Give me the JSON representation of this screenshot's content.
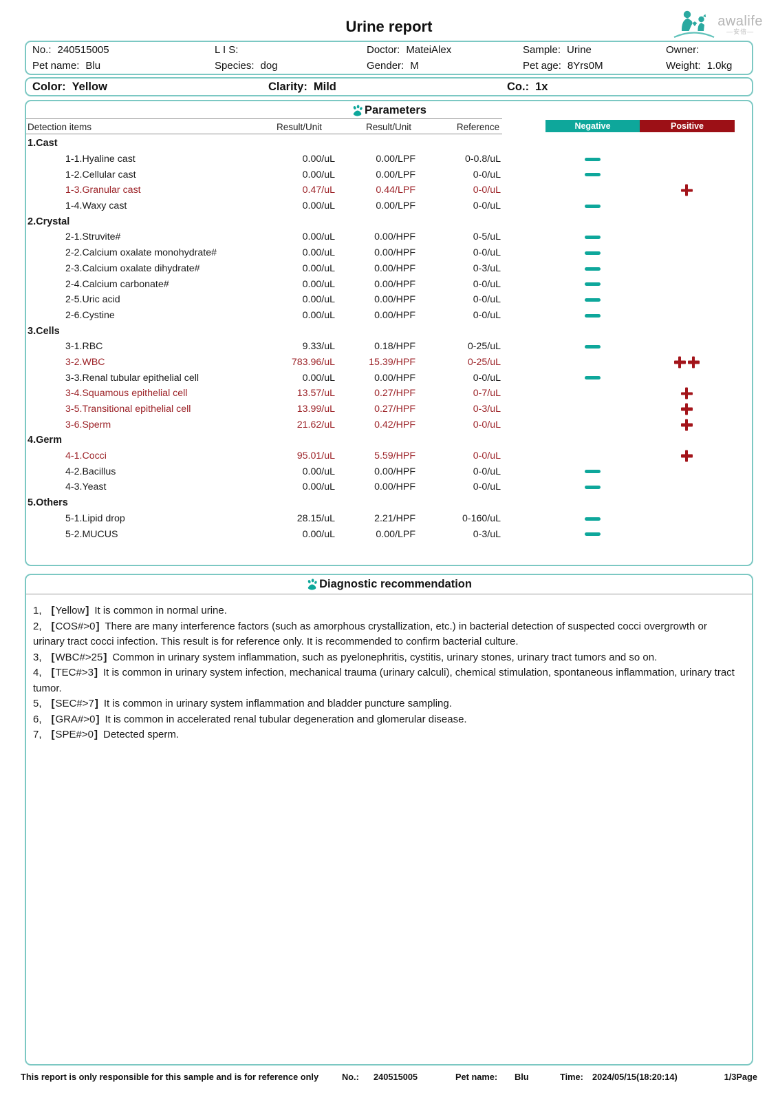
{
  "colors": {
    "accent_teal": "#0ea79b",
    "border_teal": "#7cc8c3",
    "positive_red": "#9c1016",
    "abnormal_text": "#9c2227"
  },
  "header": {
    "title": "Urine report",
    "logo": {
      "brand": "awalife",
      "subtitle": "—安倍—"
    }
  },
  "info": {
    "rows": [
      [
        {
          "label": "No.:",
          "value": "240515005"
        },
        {
          "label": "L I S:",
          "value": ""
        },
        {
          "label": "Doctor:",
          "value": "MateiAlex"
        },
        {
          "label": "Sample:",
          "value": "Urine"
        },
        {
          "label": "Owner:",
          "value": ""
        }
      ],
      [
        {
          "label": "Pet name:",
          "value": "Blu"
        },
        {
          "label": "Species:",
          "value": "dog"
        },
        {
          "label": "Gender:",
          "value": "M"
        },
        {
          "label": "Pet age:",
          "value": "8Yrs0M"
        },
        {
          "label": "Weight:",
          "value": "1.0kg"
        }
      ]
    ]
  },
  "sample_row": [
    {
      "label": "Color:",
      "value": "Yellow"
    },
    {
      "label": "Clarity:",
      "value": "Mild"
    },
    {
      "label": "Co.:",
      "value": "1x"
    }
  ],
  "parameters": {
    "title": "Parameters",
    "columns": {
      "items": "Detection items",
      "result1": "Result/Unit",
      "result2": "Result/Unit",
      "reference": "Reference"
    },
    "legend": {
      "negative": "Negative",
      "positive": "Positive"
    },
    "sections": [
      {
        "name": "1.Cast",
        "items": [
          {
            "name": "1-1.Hyaline cast",
            "result1": "0.00/uL",
            "result2": "0.00/LPF",
            "reference": "0-0.8/uL",
            "flag": "negative",
            "abnormal": false
          },
          {
            "name": "1-2.Cellular cast",
            "result1": "0.00/uL",
            "result2": "0.00/LPF",
            "reference": "0-0/uL",
            "flag": "negative",
            "abnormal": false
          },
          {
            "name": "1-3.Granular cast",
            "result1": "0.47/uL",
            "result2": "0.44/LPF",
            "reference": "0-0/uL",
            "flag": "positive",
            "abnormal": true
          },
          {
            "name": "1-4.Waxy cast",
            "result1": "0.00/uL",
            "result2": "0.00/LPF",
            "reference": "0-0/uL",
            "flag": "negative",
            "abnormal": false
          }
        ]
      },
      {
        "name": "2.Crystal",
        "items": [
          {
            "name": "2-1.Struvite#",
            "result1": "0.00/uL",
            "result2": "0.00/HPF",
            "reference": "0-5/uL",
            "flag": "negative",
            "abnormal": false
          },
          {
            "name": "2-2.Calcium oxalate monohydrate#",
            "result1": "0.00/uL",
            "result2": "0.00/HPF",
            "reference": "0-0/uL",
            "flag": "negative",
            "abnormal": false
          },
          {
            "name": "2-3.Calcium oxalate dihydrate#",
            "result1": "0.00/uL",
            "result2": "0.00/HPF",
            "reference": "0-3/uL",
            "flag": "negative",
            "abnormal": false
          },
          {
            "name": "2-4.Calcium carbonate#",
            "result1": "0.00/uL",
            "result2": "0.00/HPF",
            "reference": "0-0/uL",
            "flag": "negative",
            "abnormal": false
          },
          {
            "name": "2-5.Uric acid",
            "result1": "0.00/uL",
            "result2": "0.00/HPF",
            "reference": "0-0/uL",
            "flag": "negative",
            "abnormal": false
          },
          {
            "name": "2-6.Cystine",
            "result1": "0.00/uL",
            "result2": "0.00/HPF",
            "reference": "0-0/uL",
            "flag": "negative",
            "abnormal": false
          }
        ]
      },
      {
        "name": "3.Cells",
        "items": [
          {
            "name": "3-1.RBC",
            "result1": "9.33/uL",
            "result2": "0.18/HPF",
            "reference": "0-25/uL",
            "flag": "negative",
            "abnormal": false
          },
          {
            "name": "3-2.WBC",
            "result1": "783.96/uL",
            "result2": "15.39/HPF",
            "reference": "0-25/uL",
            "flag": "positive2",
            "abnormal": true
          },
          {
            "name": "3-3.Renal tubular epithelial cell",
            "result1": "0.00/uL",
            "result2": "0.00/HPF",
            "reference": "0-0/uL",
            "flag": "negative",
            "abnormal": false
          },
          {
            "name": "3-4.Squamous epithelial cell",
            "result1": "13.57/uL",
            "result2": "0.27/HPF",
            "reference": "0-7/uL",
            "flag": "positive",
            "abnormal": true
          },
          {
            "name": "3-5.Transitional epithelial cell",
            "result1": "13.99/uL",
            "result2": "0.27/HPF",
            "reference": "0-3/uL",
            "flag": "positive",
            "abnormal": true
          },
          {
            "name": "3-6.Sperm",
            "result1": "21.62/uL",
            "result2": "0.42/HPF",
            "reference": "0-0/uL",
            "flag": "positive",
            "abnormal": true
          }
        ]
      },
      {
        "name": "4.Germ",
        "items": [
          {
            "name": "4-1.Cocci",
            "result1": "95.01/uL",
            "result2": "5.59/HPF",
            "reference": "0-0/uL",
            "flag": "positive",
            "abnormal": true
          },
          {
            "name": "4-2.Bacillus",
            "result1": "0.00/uL",
            "result2": "0.00/HPF",
            "reference": "0-0/uL",
            "flag": "negative",
            "abnormal": false
          },
          {
            "name": "4-3.Yeast",
            "result1": "0.00/uL",
            "result2": "0.00/HPF",
            "reference": "0-0/uL",
            "flag": "negative",
            "abnormal": false
          }
        ]
      },
      {
        "name": "5.Others",
        "items": [
          {
            "name": "5-1.Lipid drop",
            "result1": "28.15/uL",
            "result2": "2.21/HPF",
            "reference": "0-160/uL",
            "flag": "negative",
            "abnormal": false
          },
          {
            "name": "5-2.MUCUS",
            "result1": "0.00/uL",
            "result2": "0.00/LPF",
            "reference": "0-3/uL",
            "flag": "negative",
            "abnormal": false
          }
        ]
      }
    ]
  },
  "diagnostics": {
    "title": "Diagnostic recommendation",
    "items": [
      {
        "num": "1",
        "code": "Yellow",
        "text": "It is common in normal urine."
      },
      {
        "num": "2",
        "code": "COS#>0",
        "text": "There are many interference factors (such as amorphous crystallization, etc.) in bacterial detection of suspected cocci overgrowth or urinary tract cocci infection. This result is for reference only. It is recommended to confirm bacterial culture."
      },
      {
        "num": "3",
        "code": "WBC#>25",
        "text": "Common in urinary system inflammation, such as pyelonephritis, cystitis, urinary stones, urinary tract tumors and so on."
      },
      {
        "num": "4",
        "code": "TEC#>3",
        "text": "It is common in urinary system infection, mechanical trauma (urinary calculi), chemical stimulation, spontaneous inflammation, urinary tract tumor."
      },
      {
        "num": "5",
        "code": "SEC#>7",
        "text": "It is common in urinary system inflammation and bladder puncture sampling."
      },
      {
        "num": "6",
        "code": "GRA#>0",
        "text": "It is common in accelerated renal tubular degeneration and glomerular disease."
      },
      {
        "num": "7",
        "code": "SPE#>0",
        "text": "Detected sperm."
      }
    ]
  },
  "footer": {
    "disclaimer": "This report is only responsible for this sample and is for reference only",
    "no_label": "No.:",
    "no_value": "240515005",
    "pet_label": "Pet name:",
    "pet_value": "Blu",
    "time_label": "Time:",
    "time_value": "2024/05/15(18:20:14)",
    "page": "1/3Page"
  }
}
